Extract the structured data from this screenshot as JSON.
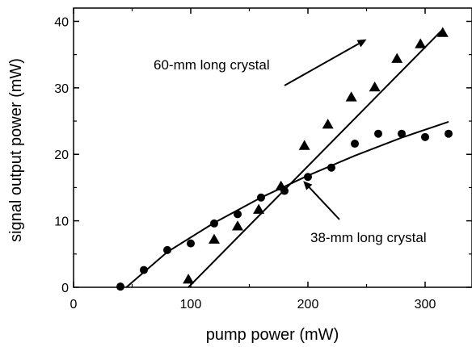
{
  "chart_data": {
    "type": "scatter",
    "title": "",
    "xlabel": "pump power (mW)",
    "ylabel": "signal output power (mW)",
    "xlim": [
      0,
      340
    ],
    "ylim": [
      0,
      42
    ],
    "x_ticks": [
      "0",
      "100",
      "200",
      "300"
    ],
    "y_ticks": [
      "0",
      "10",
      "20",
      "30",
      "40"
    ],
    "grid": false,
    "series": [
      {
        "marker": "triangle",
        "color": "#000000",
        "points": [
          [
            98,
            1.2
          ],
          [
            120,
            7.2
          ],
          [
            140,
            9.2
          ],
          [
            158,
            11.7
          ],
          [
            177,
            15.2
          ],
          [
            197,
            21.3
          ],
          [
            217,
            24.5
          ],
          [
            237,
            28.6
          ],
          [
            257,
            30.1
          ],
          [
            276,
            34.4
          ],
          [
            296,
            36.6
          ],
          [
            315,
            38.3
          ]
        ],
        "fit_line": [
          [
            98,
            0
          ],
          [
            315,
            38.8
          ]
        ]
      },
      {
        "marker": "circle",
        "color": "#000000",
        "points": [
          [
            40,
            0.1
          ],
          [
            60,
            2.6
          ],
          [
            80,
            5.6
          ],
          [
            100,
            6.6
          ],
          [
            120,
            9.6
          ],
          [
            140,
            11.0
          ],
          [
            160,
            13.5
          ],
          [
            180,
            14.5
          ],
          [
            200,
            16.6
          ],
          [
            220,
            18.0
          ],
          [
            240,
            21.6
          ],
          [
            260,
            23.1
          ],
          [
            280,
            23.1
          ],
          [
            300,
            22.6
          ],
          [
            320,
            23.1
          ]
        ],
        "fit_curve": [
          [
            45,
            0
          ],
          [
            80,
            5.3
          ],
          [
            120,
            9.7
          ],
          [
            160,
            13.5
          ],
          [
            200,
            16.8
          ],
          [
            240,
            19.8
          ],
          [
            280,
            22.5
          ],
          [
            320,
            24.9
          ]
        ]
      }
    ],
    "annotations": [
      {
        "text": "60-mm long crystal",
        "arrow_to": [
          250,
          37.3
        ]
      },
      {
        "text": "38-mm long crystal",
        "arrow_to": [
          196,
          16.0
        ]
      }
    ]
  }
}
